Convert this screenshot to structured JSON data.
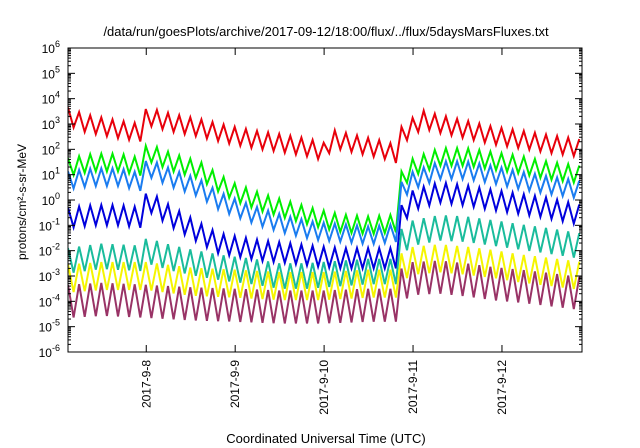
{
  "chart_data": {
    "type": "line",
    "title": "/data/run/goesPlots/archive/2017-09-12/18:00/flux/../flux/5daysMarsFluxes.txt",
    "xlabel": "Coordinated Universal Time (UTC)",
    "ylabel": "protons/cm²-s-sr-MeV",
    "yscale": "log",
    "ylim": [
      1e-06,
      1000000.0
    ],
    "xlim": [
      -0.88,
      4.9
    ],
    "grid": false,
    "legend": "none",
    "x_ticks": [
      {
        "label": "2017-9-8",
        "x": 0
      },
      {
        "label": "2017-9-9",
        "x": 1
      },
      {
        "label": "2017-9-10",
        "x": 2
      },
      {
        "label": "2017-9-11",
        "x": 3
      },
      {
        "label": "2017-9-12",
        "x": 4
      }
    ],
    "y_ticks": [
      {
        "base": "10",
        "exp": "-6",
        "value": 1e-06
      },
      {
        "base": "10",
        "exp": "-5",
        "value": 1e-05
      },
      {
        "base": "10",
        "exp": "-4",
        "value": 0.0001
      },
      {
        "base": "10",
        "exp": "-3",
        "value": 0.001
      },
      {
        "base": "10",
        "exp": "-2",
        "value": 0.01
      },
      {
        "base": "10",
        "exp": "-1",
        "value": 0.1
      },
      {
        "base": "10",
        "exp": "0",
        "value": 1
      },
      {
        "base": "10",
        "exp": "1",
        "value": 10
      },
      {
        "base": "10",
        "exp": "2",
        "value": 100
      },
      {
        "base": "10",
        "exp": "3",
        "value": 1000
      },
      {
        "base": "10",
        "exp": "4",
        "value": 10000
      },
      {
        "base": "10",
        "exp": "5",
        "value": 100000
      },
      {
        "base": "10",
        "exp": "6",
        "value": 1000000
      }
    ],
    "series": [
      {
        "color": "#e8000b",
        "points": [
          [
            -0.88,
            2000
          ],
          [
            -0.7,
            1100
          ],
          [
            -0.5,
            800
          ],
          [
            -0.3,
            600
          ],
          [
            -0.05,
            450
          ],
          [
            -0.03,
            1400
          ],
          [
            0.01,
            2000
          ],
          [
            0.3,
            1100
          ],
          [
            0.6,
            700
          ],
          [
            0.9,
            400
          ],
          [
            1.2,
            250
          ],
          [
            1.5,
            180
          ],
          [
            1.8,
            120
          ],
          [
            2.0,
            80
          ],
          [
            2.1,
            260
          ],
          [
            2.4,
            150
          ],
          [
            2.7,
            90
          ],
          [
            2.83,
            60
          ],
          [
            2.85,
            300
          ],
          [
            3.0,
            800
          ],
          [
            3.12,
            1500
          ],
          [
            3.3,
            1000
          ],
          [
            3.6,
            600
          ],
          [
            3.9,
            350
          ],
          [
            4.2,
            250
          ],
          [
            4.5,
            170
          ],
          [
            4.9,
            110
          ]
        ],
        "osc": 0.35
      },
      {
        "color": "#00ee00",
        "points": [
          [
            -0.88,
            20
          ],
          [
            -0.6,
            30
          ],
          [
            -0.3,
            30
          ],
          [
            -0.05,
            20
          ],
          [
            -0.03,
            40
          ],
          [
            0.01,
            80
          ],
          [
            0.3,
            30
          ],
          [
            0.6,
            15
          ],
          [
            0.8,
            5
          ],
          [
            1.0,
            2
          ],
          [
            1.3,
            0.8
          ],
          [
            1.6,
            0.4
          ],
          [
            1.9,
            0.2
          ],
          [
            2.2,
            0.12
          ],
          [
            2.5,
            0.1
          ],
          [
            2.83,
            0.12
          ],
          [
            2.85,
            5
          ],
          [
            3.0,
            20
          ],
          [
            3.3,
            50
          ],
          [
            3.6,
            50
          ],
          [
            3.9,
            35
          ],
          [
            4.2,
            25
          ],
          [
            4.5,
            15
          ],
          [
            4.9,
            10
          ]
        ],
        "osc": 0.35
      },
      {
        "color": "#1a7cf0",
        "points": [
          [
            -0.88,
            6
          ],
          [
            -0.6,
            8
          ],
          [
            -0.3,
            8
          ],
          [
            -0.05,
            5
          ],
          [
            -0.03,
            10
          ],
          [
            0.01,
            20
          ],
          [
            0.3,
            7
          ],
          [
            0.6,
            3
          ],
          [
            0.8,
            1
          ],
          [
            1.0,
            0.5
          ],
          [
            1.3,
            0.2
          ],
          [
            1.6,
            0.1
          ],
          [
            1.9,
            0.06
          ],
          [
            2.2,
            0.05
          ],
          [
            2.5,
            0.04
          ],
          [
            2.83,
            0.05
          ],
          [
            2.85,
            2
          ],
          [
            3.0,
            6
          ],
          [
            3.3,
            15
          ],
          [
            3.6,
            15
          ],
          [
            3.9,
            10
          ],
          [
            4.2,
            6
          ],
          [
            4.5,
            4
          ],
          [
            4.9,
            2.5
          ]
        ],
        "osc": 0.35
      },
      {
        "color": "#0000dd",
        "points": [
          [
            -0.88,
            0.2
          ],
          [
            -0.6,
            0.25
          ],
          [
            -0.3,
            0.25
          ],
          [
            -0.05,
            0.2
          ],
          [
            -0.03,
            0.4
          ],
          [
            0.01,
            1
          ],
          [
            0.3,
            0.2
          ],
          [
            0.6,
            0.05
          ],
          [
            0.8,
            0.02
          ],
          [
            1.0,
            0.015
          ],
          [
            1.3,
            0.01
          ],
          [
            1.6,
            0.008
          ],
          [
            1.9,
            0.006
          ],
          [
            2.2,
            0.005
          ],
          [
            2.5,
            0.005
          ],
          [
            2.83,
            0.005
          ],
          [
            2.85,
            0.2
          ],
          [
            3.0,
            1
          ],
          [
            3.3,
            2
          ],
          [
            3.6,
            1.5
          ],
          [
            3.9,
            1
          ],
          [
            4.2,
            0.7
          ],
          [
            4.5,
            0.5
          ],
          [
            4.9,
            0.25
          ]
        ],
        "osc": 0.4
      },
      {
        "color": "#1abc9c",
        "points": [
          [
            -0.88,
            0.004
          ],
          [
            -0.5,
            0.006
          ],
          [
            -0.05,
            0.005
          ],
          [
            -0.03,
            0.008
          ],
          [
            0.01,
            0.01
          ],
          [
            0.3,
            0.005
          ],
          [
            0.6,
            0.003
          ],
          [
            0.9,
            0.002
          ],
          [
            1.2,
            0.0015
          ],
          [
            1.5,
            0.001
          ],
          [
            1.8,
            0.001
          ],
          [
            2.1,
            0.0012
          ],
          [
            2.5,
            0.0015
          ],
          [
            2.83,
            0.0015
          ],
          [
            2.85,
            0.02
          ],
          [
            3.0,
            0.05
          ],
          [
            3.3,
            0.08
          ],
          [
            3.6,
            0.07
          ],
          [
            3.9,
            0.05
          ],
          [
            4.2,
            0.035
          ],
          [
            4.5,
            0.025
          ],
          [
            4.9,
            0.015
          ]
        ],
        "osc": 0.5
      },
      {
        "color": "#f5f500",
        "points": [
          [
            -0.88,
            0.0008
          ],
          [
            -0.5,
            0.001
          ],
          [
            0,
            0.001
          ],
          [
            0.5,
            0.0006
          ],
          [
            1.0,
            0.0005
          ],
          [
            1.5,
            0.0004
          ],
          [
            2.0,
            0.0004
          ],
          [
            2.5,
            0.0005
          ],
          [
            2.83,
            0.0005
          ],
          [
            2.85,
            0.002
          ],
          [
            3.0,
            0.004
          ],
          [
            3.3,
            0.005
          ],
          [
            3.6,
            0.004
          ],
          [
            3.9,
            0.003
          ],
          [
            4.2,
            0.002
          ],
          [
            4.5,
            0.0015
          ],
          [
            4.9,
            0.001
          ]
        ],
        "osc": 0.55
      },
      {
        "color": "#993366",
        "points": [
          [
            -0.88,
            0.0001
          ],
          [
            -0.5,
            0.00012
          ],
          [
            0,
            0.0001
          ],
          [
            0.5,
            8e-05
          ],
          [
            1.0,
            7e-05
          ],
          [
            1.5,
            6e-05
          ],
          [
            2.0,
            6e-05
          ],
          [
            2.5,
            7e-05
          ],
          [
            2.83,
            7e-05
          ],
          [
            2.85,
            0.0004
          ],
          [
            3.0,
            0.0008
          ],
          [
            3.3,
            0.0009
          ],
          [
            3.6,
            0.0007
          ],
          [
            3.9,
            0.0005
          ],
          [
            4.2,
            0.0004
          ],
          [
            4.5,
            0.0003
          ],
          [
            4.9,
            0.0002
          ]
        ],
        "osc": 0.65
      }
    ]
  }
}
